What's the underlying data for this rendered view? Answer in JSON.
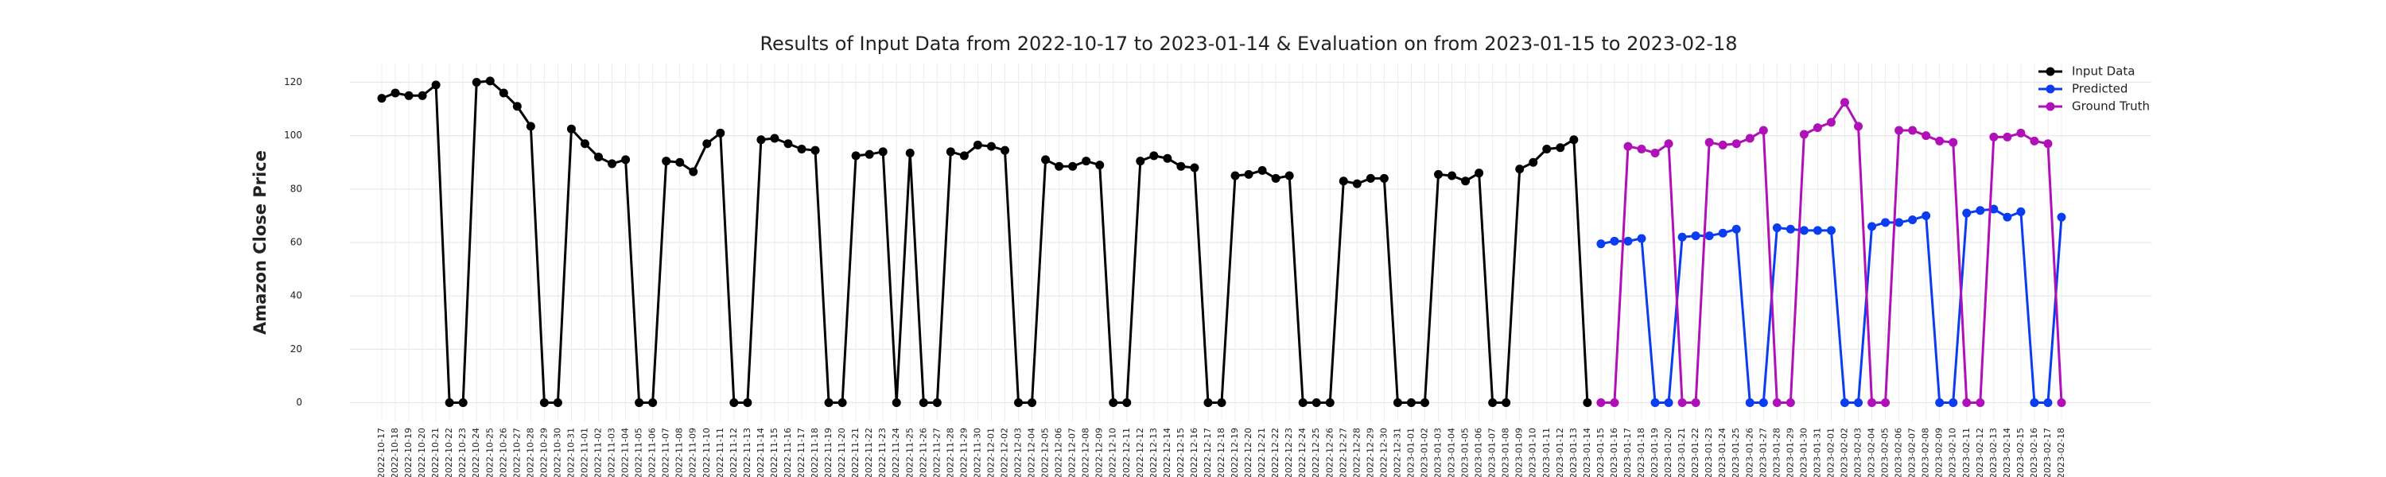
{
  "chart_data": {
    "type": "line",
    "title": "Results of Input Data from 2022-10-17 to 2023-01-14 & Evaluation on from 2023-01-15 to 2023-02-18",
    "y_label": "Amazon Close Price",
    "categories": [
      "2022-10-17",
      "2022-10-18",
      "2022-10-19",
      "2022-10-20",
      "2022-10-21",
      "2022-10-22",
      "2022-10-23",
      "2022-10-24",
      "2022-10-25",
      "2022-10-26",
      "2022-10-27",
      "2022-10-28",
      "2022-10-29",
      "2022-10-30",
      "2022-10-31",
      "2022-11-01",
      "2022-11-02",
      "2022-11-03",
      "2022-11-04",
      "2022-11-05",
      "2022-11-06",
      "2022-11-07",
      "2022-11-08",
      "2022-11-09",
      "2022-11-10",
      "2022-11-11",
      "2022-11-12",
      "2022-11-13",
      "2022-11-14",
      "2022-11-15",
      "2022-11-16",
      "2022-11-17",
      "2022-11-18",
      "2022-11-19",
      "2022-11-20",
      "2022-11-21",
      "2022-11-22",
      "2022-11-23",
      "2022-11-24",
      "2022-11-25",
      "2022-11-26",
      "2022-11-27",
      "2022-11-28",
      "2022-11-29",
      "2022-11-30",
      "2022-12-01",
      "2022-12-02",
      "2022-12-03",
      "2022-12-04",
      "2022-12-05",
      "2022-12-06",
      "2022-12-07",
      "2022-12-08",
      "2022-12-09",
      "2022-12-10",
      "2022-12-11",
      "2022-12-12",
      "2022-12-13",
      "2022-12-14",
      "2022-12-15",
      "2022-12-16",
      "2022-12-17",
      "2022-12-18",
      "2022-12-19",
      "2022-12-20",
      "2022-12-21",
      "2022-12-22",
      "2022-12-23",
      "2022-12-24",
      "2022-12-25",
      "2022-12-26",
      "2022-12-27",
      "2022-12-28",
      "2022-12-29",
      "2022-12-30",
      "2022-12-31",
      "2023-01-01",
      "2023-01-02",
      "2023-01-03",
      "2023-01-04",
      "2023-01-05",
      "2023-01-06",
      "2023-01-07",
      "2023-01-08",
      "2023-01-09",
      "2023-01-10",
      "2023-01-11",
      "2023-01-12",
      "2023-01-13",
      "2023-01-14",
      "2023-01-15",
      "2023-01-16",
      "2023-01-17",
      "2023-01-18",
      "2023-01-19",
      "2023-01-20",
      "2023-01-21",
      "2023-01-22",
      "2023-01-23",
      "2023-01-24",
      "2023-01-25",
      "2023-01-26",
      "2023-01-27",
      "2023-01-28",
      "2023-01-29",
      "2023-01-30",
      "2023-01-31",
      "2023-02-01",
      "2023-02-02",
      "2023-02-03",
      "2023-02-04",
      "2023-02-05",
      "2023-02-06",
      "2023-02-07",
      "2023-02-08",
      "2023-02-09",
      "2023-02-10",
      "2023-02-11",
      "2023-02-12",
      "2023-02-13",
      "2023-02-14",
      "2023-02-15",
      "2023-02-16",
      "2023-02-17",
      "2023-02-18"
    ],
    "series": [
      {
        "name": "Input Data",
        "color": "#000000",
        "values": [
          114,
          116,
          115,
          115,
          119,
          0,
          0,
          120,
          120.5,
          116,
          111,
          103.5,
          0,
          0,
          102.5,
          97,
          92,
          89.5,
          91,
          0,
          0,
          90.5,
          90,
          86.5,
          97,
          101,
          0,
          0,
          98.5,
          99,
          97,
          95,
          94.5,
          0,
          0,
          92.5,
          93,
          94,
          0,
          93.5,
          0,
          0,
          94,
          92.5,
          96.5,
          96,
          94.5,
          0,
          0,
          91,
          88.5,
          88.5,
          90.5,
          89,
          0,
          0,
          90.5,
          92.5,
          91.5,
          88.5,
          88,
          0,
          0,
          85,
          85.5,
          87,
          84,
          85,
          0,
          0,
          0,
          83,
          82,
          84,
          84,
          0,
          0,
          0,
          85.5,
          85,
          83,
          86,
          0,
          0,
          87.5,
          90,
          95,
          95.5,
          98.5,
          0,
          null,
          null,
          null,
          null,
          null,
          null,
          null,
          null,
          null,
          null,
          null,
          null,
          null,
          null,
          null,
          null,
          null,
          null,
          null,
          null,
          null,
          null,
          null,
          null,
          null,
          null,
          null,
          null,
          null,
          null,
          null,
          null,
          null,
          null,
          null
        ]
      },
      {
        "name": "Predicted",
        "color": "#0a3cf0",
        "values": [
          null,
          null,
          null,
          null,
          null,
          null,
          null,
          null,
          null,
          null,
          null,
          null,
          null,
          null,
          null,
          null,
          null,
          null,
          null,
          null,
          null,
          null,
          null,
          null,
          null,
          null,
          null,
          null,
          null,
          null,
          null,
          null,
          null,
          null,
          null,
          null,
          null,
          null,
          null,
          null,
          null,
          null,
          null,
          null,
          null,
          null,
          null,
          null,
          null,
          null,
          null,
          null,
          null,
          null,
          null,
          null,
          null,
          null,
          null,
          null,
          null,
          null,
          null,
          null,
          null,
          null,
          null,
          null,
          null,
          null,
          null,
          null,
          null,
          null,
          null,
          null,
          null,
          null,
          null,
          null,
          null,
          null,
          null,
          null,
          null,
          null,
          null,
          null,
          null,
          null,
          59.5,
          60.5,
          60.5,
          61.5,
          0,
          0,
          62,
          62.5,
          62.5,
          63.5,
          65,
          0,
          0,
          65.5,
          65,
          64.5,
          64.5,
          64.5,
          0,
          0,
          66,
          67.5,
          67.5,
          68.5,
          70,
          0,
          0,
          71,
          72,
          72.5,
          69.5,
          71.5,
          0,
          0,
          69.5
        ]
      },
      {
        "name": "Ground Truth",
        "color": "#b010b8",
        "values": [
          null,
          null,
          null,
          null,
          null,
          null,
          null,
          null,
          null,
          null,
          null,
          null,
          null,
          null,
          null,
          null,
          null,
          null,
          null,
          null,
          null,
          null,
          null,
          null,
          null,
          null,
          null,
          null,
          null,
          null,
          null,
          null,
          null,
          null,
          null,
          null,
          null,
          null,
          null,
          null,
          null,
          null,
          null,
          null,
          null,
          null,
          null,
          null,
          null,
          null,
          null,
          null,
          null,
          null,
          null,
          null,
          null,
          null,
          null,
          null,
          null,
          null,
          null,
          null,
          null,
          null,
          null,
          null,
          null,
          null,
          null,
          null,
          null,
          null,
          null,
          null,
          null,
          null,
          null,
          null,
          null,
          null,
          null,
          null,
          null,
          null,
          null,
          null,
          null,
          null,
          0,
          0,
          96,
          95,
          93.5,
          97,
          0,
          0,
          97.5,
          96.5,
          97,
          99,
          102,
          0,
          0,
          100.5,
          103,
          105,
          112.5,
          103.5,
          0,
          0,
          102,
          102,
          100,
          98,
          97.5,
          0,
          0,
          99.5,
          99.5,
          101,
          98,
          97,
          0
        ]
      }
    ],
    "ylim": [
      -7,
      127
    ],
    "yticks": [
      0,
      20,
      40,
      60,
      80,
      100,
      120
    ],
    "grid": true,
    "legend": "upper right"
  }
}
